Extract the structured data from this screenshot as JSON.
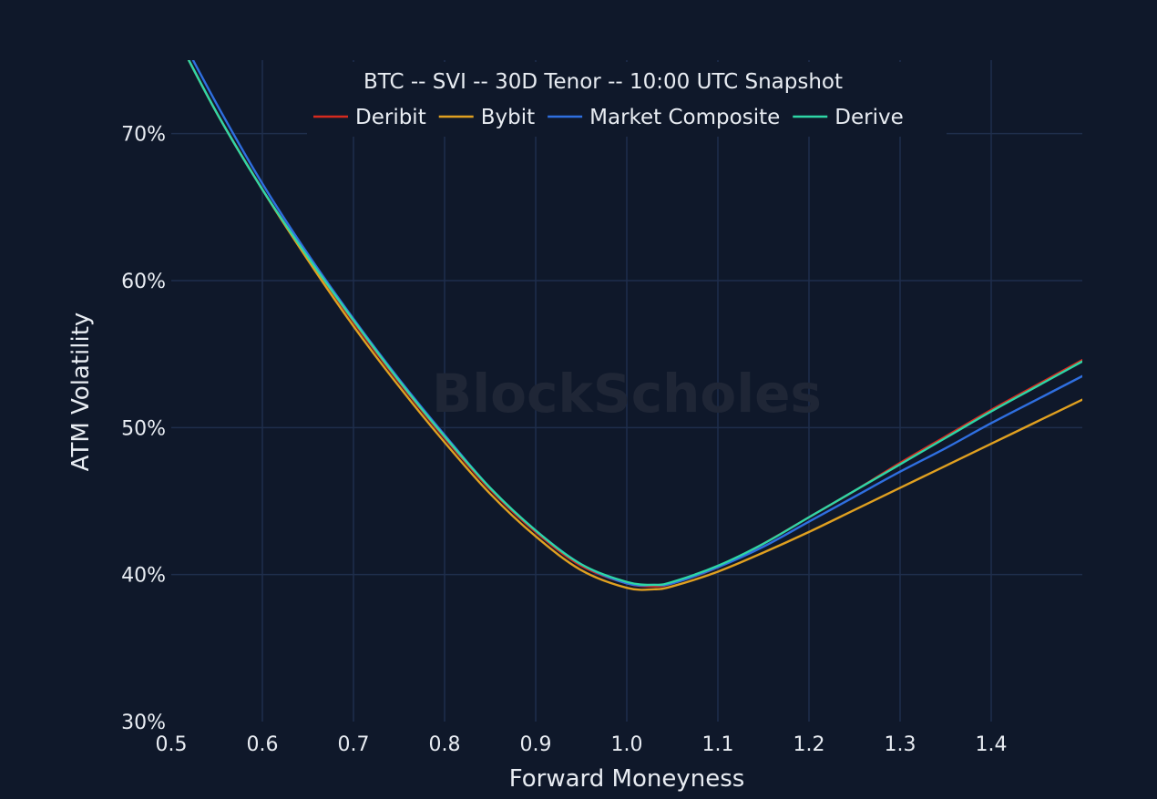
{
  "chart_data": {
    "type": "line",
    "title": "BTC -- SVI -- 30D Tenor -- 10:00 UTC Snapshot",
    "xlabel": "Forward Moneyness",
    "ylabel": "ATM Volatility",
    "xlim": [
      0.5,
      1.5
    ],
    "ylim": [
      30,
      75
    ],
    "x_ticks": [
      "0.5",
      "0.6",
      "0.7",
      "0.8",
      "0.9",
      "1.0",
      "1.1",
      "1.2",
      "1.3",
      "1.4"
    ],
    "y_ticks": [
      "30%",
      "40%",
      "50%",
      "60%",
      "70%"
    ],
    "grid": true,
    "legend_position": "top-center",
    "watermark": "BlockScholes",
    "x": [
      0.5,
      0.55,
      0.6,
      0.65,
      0.7,
      0.75,
      0.8,
      0.85,
      0.9,
      0.95,
      1.0,
      1.03,
      1.05,
      1.1,
      1.15,
      1.2,
      1.25,
      1.3,
      1.35,
      1.4,
      1.45,
      1.5
    ],
    "series": [
      {
        "name": "Deribit",
        "color": "#d62a1e",
        "values": [
          77.3,
          71.4,
          66.2,
          61.6,
          57.2,
          53.1,
          49.3,
          45.8,
          42.9,
          40.6,
          39.4,
          39.2,
          39.4,
          40.5,
          42.1,
          43.9,
          45.7,
          47.6,
          49.4,
          51.2,
          52.9,
          54.6
        ]
      },
      {
        "name": "Bybit",
        "color": "#e0a020",
        "values": [
          77.3,
          71.4,
          66.2,
          61.4,
          56.9,
          52.8,
          49.0,
          45.5,
          42.6,
          40.3,
          39.1,
          39.0,
          39.2,
          40.2,
          41.5,
          42.9,
          44.4,
          45.9,
          47.4,
          48.9,
          50.4,
          51.9
        ]
      },
      {
        "name": "Market Composite",
        "color": "#2f6fe0",
        "values": [
          77.8,
          72.0,
          66.6,
          61.8,
          57.4,
          53.3,
          49.5,
          45.9,
          43.0,
          40.7,
          39.4,
          39.3,
          39.4,
          40.5,
          41.9,
          43.6,
          45.3,
          47.0,
          48.6,
          50.3,
          51.9,
          53.5
        ]
      },
      {
        "name": "Derive",
        "color": "#2ed6a6",
        "values": [
          77.3,
          71.4,
          66.2,
          61.6,
          57.3,
          53.2,
          49.4,
          45.9,
          43.0,
          40.7,
          39.5,
          39.3,
          39.5,
          40.6,
          42.1,
          43.9,
          45.7,
          47.5,
          49.3,
          51.1,
          52.8,
          54.5
        ]
      }
    ]
  }
}
